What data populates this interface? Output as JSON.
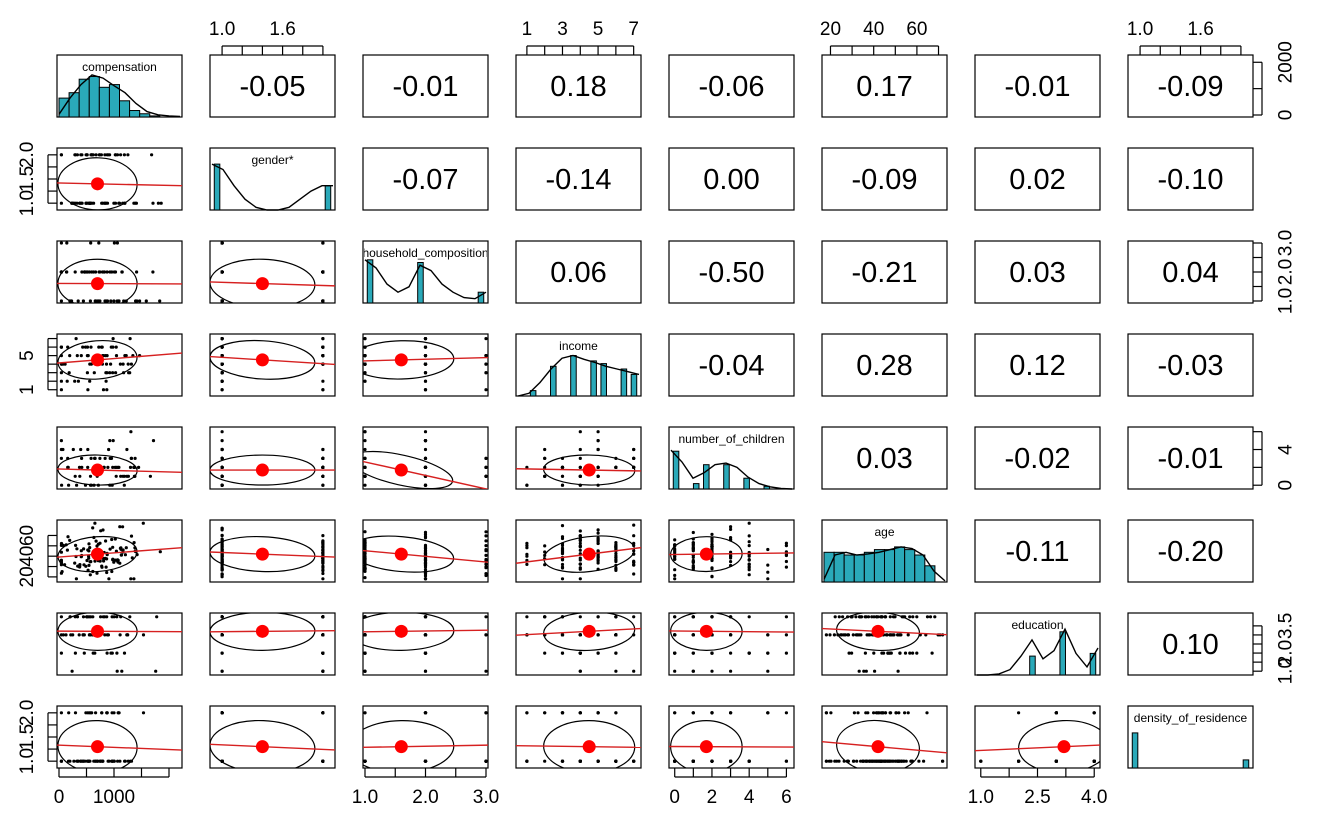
{
  "chart_data": {
    "type": "scatter-matrix",
    "variables": [
      {
        "name": "compensation",
        "label": "compensation",
        "mean": 700,
        "sd": 450,
        "range": [
          0,
          2200
        ],
        "hist": [
          0.35,
          0.45,
          0.7,
          0.75,
          0.55,
          0.6,
          0.3,
          0.12,
          0.06,
          0.02,
          0,
          0
        ],
        "density": [
          0.05,
          0.35,
          0.6,
          0.78,
          0.72,
          0.58,
          0.45,
          0.25,
          0.1,
          0.04,
          0.02,
          0.01
        ],
        "points": []
      },
      {
        "name": "gender",
        "label": "gender*",
        "mean": 1.4,
        "sd": 0.45,
        "range": [
          0.9,
          2.1
        ],
        "hist": [
          0.85,
          0,
          0,
          0,
          0,
          0,
          0,
          0,
          0,
          0,
          0,
          0.45
        ],
        "density": [
          0.85,
          0.75,
          0.45,
          0.2,
          0.05,
          0.0,
          0.0,
          0.05,
          0.2,
          0.35,
          0.45,
          0.45
        ],
        "points": [
          1,
          2
        ]
      },
      {
        "name": "household_composition",
        "label": "household_composition",
        "mean": 1.6,
        "sd": 0.6,
        "range": [
          1,
          3
        ],
        "hist": [
          0.8,
          0,
          0,
          0,
          0,
          0.75,
          0,
          0,
          0,
          0,
          0,
          0.2
        ],
        "density": [
          0.8,
          0.65,
          0.35,
          0.2,
          0.3,
          0.7,
          0.6,
          0.35,
          0.2,
          0.1,
          0.08,
          0.2
        ],
        "points": [
          1,
          2,
          3
        ]
      },
      {
        "name": "income",
        "label": "income",
        "mean": 4.5,
        "sd": 1.6,
        "range": [
          0.5,
          7.3
        ],
        "hist": [
          0,
          0.1,
          0,
          0.55,
          0,
          0.75,
          0,
          0.65,
          0.6,
          0,
          0.5,
          0.4
        ],
        "density": [
          0.0,
          0.05,
          0.25,
          0.5,
          0.7,
          0.75,
          0.68,
          0.62,
          0.55,
          0.5,
          0.45,
          0.4
        ],
        "points": [
          1,
          2,
          3,
          4,
          5,
          6,
          7
        ]
      },
      {
        "name": "number_of_children",
        "label": "number_of_children",
        "mean": 1.7,
        "sd": 1.2,
        "range": [
          -0.2,
          6.3
        ],
        "hist": [
          0.7,
          0,
          0.1,
          0.45,
          0,
          0.45,
          0,
          0.2,
          0,
          0.05,
          0,
          0
        ],
        "density": [
          0.72,
          0.5,
          0.2,
          0.3,
          0.45,
          0.48,
          0.4,
          0.22,
          0.1,
          0.04,
          0.01,
          0.0
        ],
        "points": [
          0,
          1,
          2,
          3,
          4,
          5,
          6
        ]
      },
      {
        "name": "age",
        "label": "age",
        "mean": 42,
        "sd": 12,
        "range": [
          17,
          73
        ],
        "hist": [
          0.55,
          0.55,
          0.5,
          0.5,
          0.55,
          0.6,
          0.6,
          0.65,
          0.6,
          0.5,
          0.3,
          0
        ],
        "density": [
          0.05,
          0.5,
          0.55,
          0.5,
          0.52,
          0.55,
          0.6,
          0.65,
          0.62,
          0.5,
          0.2,
          0.02
        ],
        "points": []
      },
      {
        "name": "education",
        "label": "education",
        "mean": 3.2,
        "sd": 0.75,
        "range": [
          0.9,
          4.1
        ],
        "hist": [
          0,
          0,
          0,
          0,
          0,
          0.35,
          0,
          0,
          0.8,
          0,
          0,
          0.4
        ],
        "density": [
          0.0,
          0.0,
          0.02,
          0.1,
          0.35,
          0.65,
          0.3,
          0.45,
          0.85,
          0.4,
          0.15,
          0.5
        ],
        "points": [
          1,
          2,
          3,
          4
        ]
      },
      {
        "name": "density_of_residence",
        "label": "density_of_residence",
        "mean": 1.3,
        "sd": 0.4,
        "range": [
          0.9,
          2.1
        ],
        "hist": [
          0.65,
          0,
          0,
          0,
          0,
          0,
          0,
          0,
          0,
          0,
          0,
          0.15
        ],
        "density": [],
        "points": [
          1,
          2
        ]
      }
    ],
    "correlations": [
      [
        null,
        "-0.05",
        "-0.01",
        "0.18",
        "-0.06",
        "0.17",
        "-0.01",
        "-0.09"
      ],
      [
        null,
        null,
        "-0.07",
        "-0.14",
        "0.00",
        "-0.09",
        "0.02",
        "-0.10"
      ],
      [
        null,
        null,
        null,
        "0.06",
        "-0.50",
        "-0.21",
        "0.03",
        "0.04"
      ],
      [
        null,
        null,
        null,
        null,
        "-0.04",
        "0.28",
        "0.12",
        "-0.03"
      ],
      [
        null,
        null,
        null,
        null,
        null,
        "0.03",
        "-0.02",
        "-0.01"
      ],
      [
        null,
        null,
        null,
        null,
        null,
        null,
        "-0.11",
        "-0.20"
      ],
      [
        null,
        null,
        null,
        null,
        null,
        null,
        null,
        "0.10"
      ]
    ],
    "axes": {
      "top": [
        {
          "column": 1,
          "ticks": [
            1.0,
            1.2,
            1.4,
            1.6,
            1.8,
            2.0
          ],
          "labels": {
            "1.0": "1.0",
            "1.6": "1.6"
          }
        },
        {
          "column": 3,
          "ticks": [
            1,
            2,
            3,
            4,
            5,
            6,
            7
          ],
          "labels": {
            "1": "1",
            "3": "3",
            "5": "5",
            "7": "7"
          }
        },
        {
          "column": 5,
          "ticks": [
            20,
            30,
            40,
            50,
            60,
            70
          ],
          "labels": {
            "20": "20",
            "40": "40",
            "60": "60"
          }
        },
        {
          "column": 7,
          "ticks": [
            1.0,
            1.2,
            1.4,
            1.6,
            1.8,
            2.0
          ],
          "labels": {
            "1.0": "1.0",
            "1.6": "1.6"
          }
        }
      ],
      "bottom": [
        {
          "column": 0,
          "ticks": [
            0,
            500,
            1000,
            1500,
            2000
          ],
          "labels": {
            "0": "0",
            "1000": "1000"
          }
        },
        {
          "column": 2,
          "ticks": [
            1.0,
            1.5,
            2.0,
            2.5,
            3.0
          ],
          "labels": {
            "1.0": "1.0",
            "2.0": "2.0",
            "3.0": "3.0"
          }
        },
        {
          "column": 4,
          "ticks": [
            0,
            1,
            2,
            3,
            4,
            5,
            6
          ],
          "labels": {
            "0": "0",
            "2": "2",
            "4": "4",
            "6": "6"
          }
        },
        {
          "column": 6,
          "ticks": [
            1.0,
            1.75,
            2.5,
            3.25,
            4.0
          ],
          "labels": {
            "1.0": "1.0",
            "2.5": "2.5",
            "4.0": "4.0"
          }
        }
      ],
      "left": [
        {
          "row": 1,
          "ticks": [
            1.0,
            1.25,
            1.5,
            1.75,
            2.0
          ],
          "labels": {
            "1.0": "1.0",
            "1.5": "1.5",
            "2.0": "2.0"
          }
        },
        {
          "row": 3,
          "ticks": [
            1,
            2,
            3,
            4,
            5,
            6,
            7
          ],
          "labels": {
            "1": "1",
            "5": "5"
          }
        },
        {
          "row": 5,
          "ticks": [
            20,
            30,
            40,
            50,
            60
          ],
          "labels": {
            "20": "20",
            "40": "40",
            "60": "60"
          }
        },
        {
          "row": 7,
          "ticks": [
            1.0,
            1.25,
            1.5,
            1.75,
            2.0
          ],
          "labels": {
            "1.0": "1.0",
            "1.5": "1.5",
            "2.0": "2.0"
          }
        }
      ],
      "right": [
        {
          "row": 0,
          "ticks": [
            0,
            1000,
            2000
          ],
          "labels": {
            "0": "0",
            "2000": "2000"
          }
        },
        {
          "row": 2,
          "ticks": [
            1.0,
            1.5,
            2.0,
            2.5,
            3.0
          ],
          "labels": {
            "1.0": "1.0",
            "2.0": "2.0",
            "3.0": "3.0"
          }
        },
        {
          "row": 4,
          "ticks": [
            0,
            2,
            4,
            6
          ],
          "labels": {
            "0": "0",
            "4": "4"
          }
        },
        {
          "row": 6,
          "ticks": [
            1.0,
            1.5,
            2.0,
            2.5,
            3.0,
            3.5
          ],
          "labels": {
            "1.0": "1.0",
            "2.0": "2.0",
            "3.5": "3.5"
          }
        }
      ]
    }
  },
  "colors": {
    "histogram_fill": "#2aa9b9",
    "mean_point": "#ff0000",
    "loess_line": "#d62020",
    "ink": "#000000"
  }
}
